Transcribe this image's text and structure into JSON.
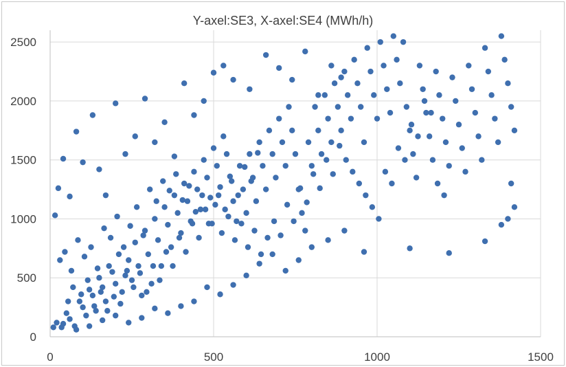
{
  "chart_data": {
    "type": "scatter",
    "title": "Y-axel:SE3, X-axel:SE4 (MWh/h)",
    "xlabel": "",
    "ylabel": "",
    "xlim": [
      0,
      1500
    ],
    "ylim": [
      0,
      2600
    ],
    "x_ticks": [
      "0",
      "500",
      "1000",
      "1500"
    ],
    "y_ticks": [
      "0",
      "500",
      "1000",
      "1500",
      "2000",
      "2500"
    ],
    "grid": true,
    "legend": "none",
    "marker_color": "#3f6faf",
    "series": [
      {
        "points": [
          [
            20,
            120
          ],
          [
            35,
            80
          ],
          [
            50,
            200
          ],
          [
            60,
            150
          ],
          [
            75,
            90
          ],
          [
            90,
            300
          ],
          [
            100,
            250
          ],
          [
            110,
            180
          ],
          [
            120,
            400
          ],
          [
            130,
            350
          ],
          [
            140,
            220
          ],
          [
            150,
            500
          ],
          [
            160,
            420
          ],
          [
            170,
            300
          ],
          [
            180,
            600
          ],
          [
            190,
            550
          ],
          [
            200,
            450
          ],
          [
            210,
            700
          ],
          [
            220,
            380
          ],
          [
            230,
            520
          ],
          [
            240,
            650
          ],
          [
            250,
            480
          ],
          [
            260,
            800
          ],
          [
            270,
            600
          ],
          [
            280,
            350
          ],
          [
            290,
            900
          ],
          [
            300,
            700
          ],
          [
            310,
            450
          ],
          [
            320,
            1000
          ],
          [
            330,
            820
          ],
          [
            340,
            600
          ],
          [
            350,
            1100
          ],
          [
            360,
            950
          ],
          [
            370,
            760
          ],
          [
            380,
            1200
          ],
          [
            390,
            1050
          ],
          [
            400,
            880
          ],
          [
            410,
            1300
          ],
          [
            420,
            1150
          ],
          [
            430,
            980
          ],
          [
            440,
            1400
          ],
          [
            450,
            1250
          ],
          [
            460,
            1080
          ],
          [
            470,
            1500
          ],
          [
            480,
            1350
          ],
          [
            490,
            1180
          ],
          [
            500,
            1600
          ],
          [
            510,
            1450
          ],
          [
            520,
            1270
          ],
          [
            530,
            1700
          ],
          [
            540,
            1550
          ],
          [
            550,
            1360
          ],
          [
            560,
            1150
          ],
          [
            570,
            980
          ],
          [
            580,
            1450
          ],
          [
            590,
            1250
          ],
          [
            600,
            1050
          ],
          [
            610,
            1550
          ],
          [
            620,
            1350
          ],
          [
            630,
            1150
          ],
          [
            640,
            1650
          ],
          [
            650,
            1450
          ],
          [
            660,
            1250
          ],
          [
            670,
            1750
          ],
          [
            680,
            1550
          ],
          [
            690,
            1350
          ],
          [
            700,
            1850
          ],
          [
            710,
            1650
          ],
          [
            720,
            1450
          ],
          [
            730,
            1950
          ],
          [
            740,
            1750
          ],
          [
            750,
            1550
          ],
          [
            760,
            1250
          ],
          [
            770,
            1050
          ],
          [
            780,
            900
          ],
          [
            790,
            1650
          ],
          [
            800,
            1450
          ],
          [
            810,
            1950
          ],
          [
            820,
            1750
          ],
          [
            830,
            1550
          ],
          [
            840,
            2050
          ],
          [
            850,
            1850
          ],
          [
            860,
            1650
          ],
          [
            870,
            2150
          ],
          [
            880,
            1950
          ],
          [
            890,
            1750
          ],
          [
            900,
            2250
          ],
          [
            910,
            2050
          ],
          [
            920,
            1850
          ],
          [
            930,
            2350
          ],
          [
            940,
            2150
          ],
          [
            950,
            1950
          ],
          [
            960,
            1650
          ],
          [
            970,
            2450
          ],
          [
            980,
            2250
          ],
          [
            990,
            2050
          ],
          [
            1000,
            1850
          ],
          [
            1010,
            2500
          ],
          [
            1020,
            2300
          ],
          [
            1030,
            2100
          ],
          [
            1040,
            1900
          ],
          [
            1050,
            2550
          ],
          [
            1060,
            2350
          ],
          [
            1070,
            2150
          ],
          [
            1080,
            2500
          ],
          [
            1090,
            1950
          ],
          [
            1100,
            1750
          ],
          [
            1110,
            1550
          ],
          [
            1120,
            1350
          ],
          [
            1130,
            2300
          ],
          [
            1140,
            2100
          ],
          [
            1150,
            1900
          ],
          [
            1160,
            1700
          ],
          [
            1170,
            1500
          ],
          [
            1180,
            2250
          ],
          [
            1190,
            2050
          ],
          [
            1200,
            1850
          ],
          [
            1210,
            1650
          ],
          [
            1220,
            1450
          ],
          [
            1230,
            2200
          ],
          [
            1240,
            2000
          ],
          [
            1250,
            1800
          ],
          [
            1260,
            1600
          ],
          [
            1270,
            1400
          ],
          [
            1280,
            2300
          ],
          [
            1290,
            2100
          ],
          [
            1300,
            1900
          ],
          [
            1310,
            1700
          ],
          [
            1320,
            1500
          ],
          [
            1330,
            2450
          ],
          [
            1340,
            2250
          ],
          [
            1350,
            2050
          ],
          [
            1360,
            1850
          ],
          [
            1370,
            1650
          ],
          [
            1380,
            2550
          ],
          [
            1390,
            2350
          ],
          [
            1400,
            2150
          ],
          [
            1410,
            1950
          ],
          [
            1420,
            1750
          ],
          [
            1400,
            1000
          ],
          [
            1410,
            1300
          ],
          [
            1420,
            1100
          ],
          [
            1380,
            950
          ],
          [
            1330,
            810
          ],
          [
            1220,
            710
          ],
          [
            1100,
            750
          ],
          [
            960,
            720
          ],
          [
            900,
            900
          ],
          [
            850,
            820
          ],
          [
            800,
            760
          ],
          [
            760,
            650
          ],
          [
            720,
            560
          ],
          [
            680,
            700
          ],
          [
            640,
            620
          ],
          [
            600,
            520
          ],
          [
            560,
            440
          ],
          [
            520,
            360
          ],
          [
            480,
            420
          ],
          [
            440,
            300
          ],
          [
            400,
            260
          ],
          [
            360,
            200
          ],
          [
            320,
            240
          ],
          [
            280,
            160
          ],
          [
            240,
            120
          ],
          [
            200,
            180
          ],
          [
            160,
            140
          ],
          [
            120,
            90
          ],
          [
            80,
            60
          ],
          [
            40,
            110
          ],
          [
            10,
            80
          ],
          [
            15,
            1030
          ],
          [
            25,
            1260
          ],
          [
            40,
            1510
          ],
          [
            60,
            1190
          ],
          [
            80,
            1740
          ],
          [
            100,
            1480
          ],
          [
            130,
            1880
          ],
          [
            150,
            1420
          ],
          [
            170,
            1200
          ],
          [
            200,
            1980
          ],
          [
            230,
            1550
          ],
          [
            260,
            1700
          ],
          [
            290,
            2020
          ],
          [
            320,
            1650
          ],
          [
            350,
            1820
          ],
          [
            380,
            1530
          ],
          [
            410,
            2150
          ],
          [
            440,
            1880
          ],
          [
            470,
            2000
          ],
          [
            500,
            2240
          ],
          [
            530,
            2300
          ],
          [
            560,
            2180
          ],
          [
            610,
            2100
          ],
          [
            660,
            2390
          ],
          [
            700,
            2280
          ],
          [
            740,
            2180
          ],
          [
            780,
            2420
          ],
          [
            820,
            2050
          ],
          [
            860,
            2300
          ],
          [
            890,
            2200
          ],
          [
            30,
            650
          ],
          [
            45,
            720
          ],
          [
            65,
            560
          ],
          [
            85,
            820
          ],
          [
            105,
            680
          ],
          [
            125,
            760
          ],
          [
            145,
            580
          ],
          [
            165,
            920
          ],
          [
            185,
            840
          ],
          [
            205,
            1020
          ],
          [
            225,
            760
          ],
          [
            245,
            940
          ],
          [
            265,
            1100
          ],
          [
            285,
            860
          ],
          [
            305,
            1250
          ],
          [
            325,
            1150
          ],
          [
            345,
            1320
          ],
          [
            365,
            1240
          ],
          [
            385,
            1380
          ],
          [
            405,
            1160
          ],
          [
            425,
            1280
          ],
          [
            445,
            1060
          ],
          [
            465,
            1200
          ],
          [
            485,
            960
          ],
          [
            505,
            1120
          ],
          [
            525,
            880
          ],
          [
            545,
            1020
          ],
          [
            565,
            820
          ],
          [
            585,
            960
          ],
          [
            605,
            760
          ],
          [
            625,
            900
          ],
          [
            645,
            700
          ],
          [
            665,
            840
          ],
          [
            685,
            980
          ],
          [
            705,
            860
          ],
          [
            725,
            1120
          ],
          [
            745,
            980
          ],
          [
            765,
            1260
          ],
          [
            785,
            1140
          ],
          [
            805,
            1380
          ],
          [
            825,
            1260
          ],
          [
            845,
            1500
          ],
          [
            865,
            1380
          ],
          [
            885,
            1620
          ],
          [
            905,
            1500
          ],
          [
            925,
            1400
          ],
          [
            945,
            1300
          ],
          [
            965,
            1200
          ],
          [
            985,
            1100
          ],
          [
            1005,
            1000
          ],
          [
            1025,
            1400
          ],
          [
            1045,
            1300
          ],
          [
            1065,
            1600
          ],
          [
            1085,
            1500
          ],
          [
            1105,
            1800
          ],
          [
            1125,
            1700
          ],
          [
            1145,
            2000
          ],
          [
            1165,
            1900
          ],
          [
            1185,
            1300
          ],
          [
            1205,
            1200
          ],
          [
            55,
            300
          ],
          [
            70,
            420
          ],
          [
            95,
            360
          ],
          [
            115,
            480
          ],
          [
            135,
            260
          ],
          [
            155,
            380
          ],
          [
            175,
            220
          ],
          [
            195,
            340
          ],
          [
            215,
            280
          ],
          [
            235,
            560
          ],
          [
            255,
            420
          ],
          [
            275,
            540
          ],
          [
            295,
            380
          ],
          [
            315,
            600
          ],
          [
            335,
            480
          ],
          [
            355,
            720
          ],
          [
            375,
            600
          ],
          [
            395,
            840
          ],
          [
            415,
            720
          ],
          [
            435,
            960
          ],
          [
            455,
            840
          ],
          [
            475,
            1080
          ],
          [
            495,
            960
          ],
          [
            515,
            1200
          ],
          [
            535,
            1080
          ],
          [
            555,
            1320
          ],
          [
            575,
            1200
          ],
          [
            595,
            1440
          ],
          [
            615,
            1320
          ],
          [
            635,
            1560
          ]
        ]
      }
    ]
  }
}
